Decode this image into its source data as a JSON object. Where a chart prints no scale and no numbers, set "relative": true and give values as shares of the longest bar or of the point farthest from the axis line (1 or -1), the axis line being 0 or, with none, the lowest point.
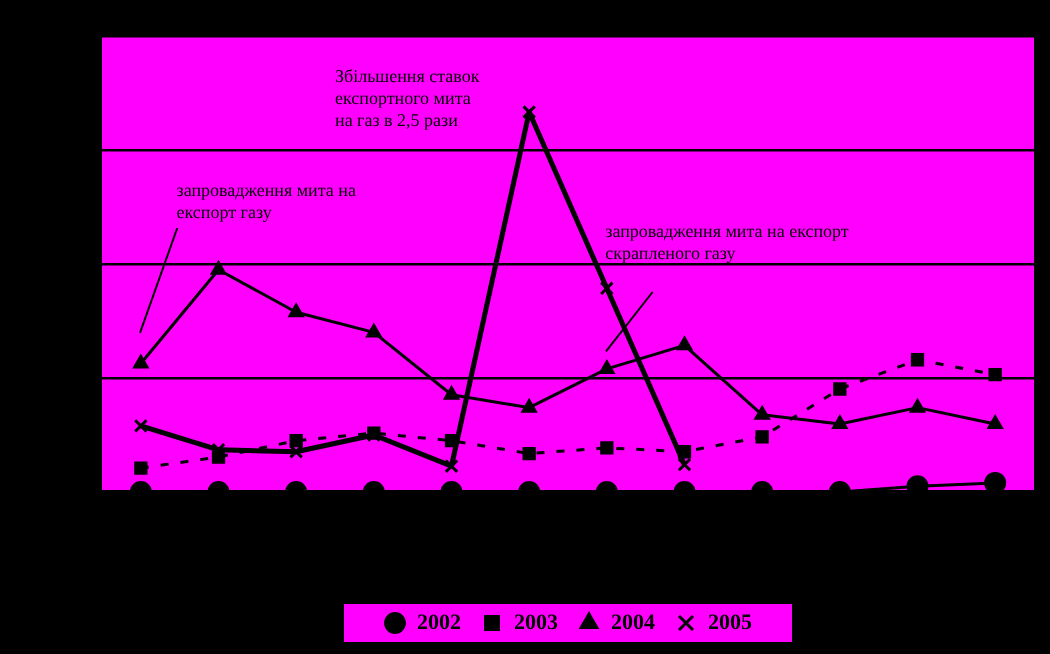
{
  "chart_data": {
    "type": "line",
    "relative": true,
    "grid": "y",
    "legend": "bottom",
    "categories": [
      null,
      null,
      null,
      null,
      null,
      null,
      null,
      null,
      null,
      null,
      null,
      null
    ],
    "annotations": [
      "запровадження мита на експорт газу",
      "Збільшення ставок експортного мита на газ в 2,5 рази",
      "запровадження мита на експорт скрапленого газу"
    ],
    "series": [
      {
        "name": "2002",
        "color": "#000000",
        "marker": "circle",
        "line_style": "solid",
        "values": [
          0,
          0,
          0,
          0,
          0,
          0,
          0,
          0,
          0,
          0,
          0.015,
          0.024
        ]
      },
      {
        "name": "2003",
        "color": "#000000",
        "marker": "square",
        "line_style": "dashed",
        "values": [
          0.063,
          0.092,
          0.135,
          0.155,
          0.135,
          0.101,
          0.116,
          0.106,
          0.145,
          0.271,
          0.348,
          0.309
        ]
      },
      {
        "name": "2004",
        "color": "#000000",
        "marker": "triangle",
        "line_style": "solid",
        "values": [
          0.338,
          0.585,
          0.473,
          0.42,
          0.256,
          0.222,
          0.324,
          0.386,
          0.203,
          0.179,
          0.222,
          0.179
        ]
      },
      {
        "name": "2005",
        "color": "#000000",
        "marker": "cross",
        "line_style": "solid",
        "values": [
          0.174,
          0.111,
          0.106,
          0.15,
          0.068,
          1,
          0.536,
          0.072,
          null,
          null,
          null,
          null
        ]
      }
    ]
  }
}
